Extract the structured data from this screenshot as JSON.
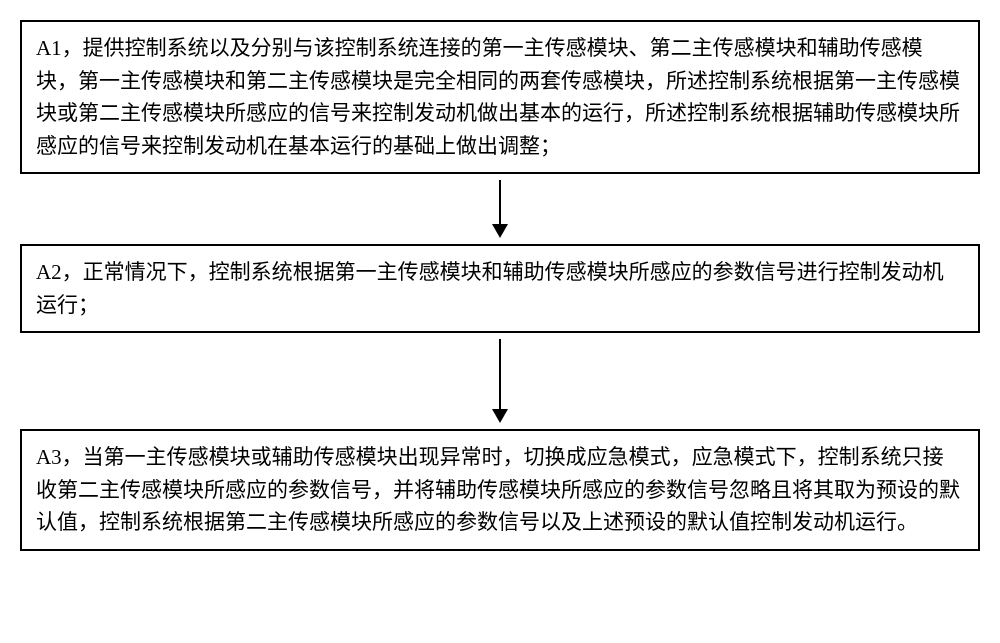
{
  "flowchart": {
    "type": "flowchart",
    "background_color": "#ffffff",
    "box_border_color": "#000000",
    "box_border_width": 2,
    "text_color": "#000000",
    "font_size": 21,
    "font_family": "SimSun",
    "arrow_color": "#000000",
    "arrow_shaft_width": 2,
    "arrow_head_width": 16,
    "arrow_head_height": 14,
    "nodes": [
      {
        "id": "A1",
        "text": "A1，提供控制系统以及分别与该控制系统连接的第一主传感模块、第二主传感模块和辅助传感模块，第一主传感模块和第二主传感模块是完全相同的两套传感模块，所述控制系统根据第一主传感模块或第二主传感模块所感应的信号来控制发动机做出基本的运行，所述控制系统根据辅助传感模块所感应的信号来控制发动机在基本运行的基础上做出调整；",
        "arrow_shaft_height": 44
      },
      {
        "id": "A2",
        "text": "A2，正常情况下，控制系统根据第一主传感模块和辅助传感模块所感应的参数信号进行控制发动机运行；",
        "arrow_shaft_height": 70
      },
      {
        "id": "A3",
        "text": "A3，当第一主传感模块或辅助传感模块出现异常时，切换成应急模式，应急模式下，控制系统只接收第二主传感模块所感应的参数信号，并将辅助传感模块所感应的参数信号忽略且将其取为预设的默认值，控制系统根据第二主传感模块所感应的参数信号以及上述预设的默认值控制发动机运行。",
        "arrow_shaft_height": 0
      }
    ],
    "edges": [
      {
        "from": "A1",
        "to": "A2"
      },
      {
        "from": "A2",
        "to": "A3"
      }
    ]
  }
}
